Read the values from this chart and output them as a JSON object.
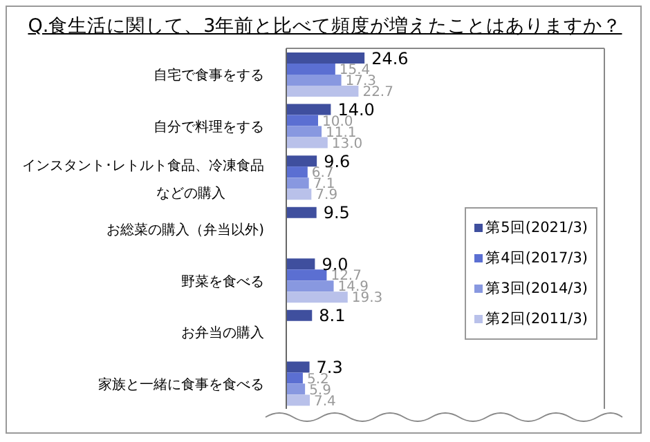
{
  "chart_data": {
    "type": "bar",
    "orientation": "horizontal",
    "title": "Q.食生活に関して、3年前と比べて頻度が増えたことはありますか？",
    "categories": [
      "自宅で食事をする",
      "自分で料理をする",
      "インスタント･レトルト食品、冷凍食品などの購入",
      "お総菜の購入（弁当以外)",
      "野菜を食べる",
      "お弁当の購入",
      "家族と一緒に食事を食べる"
    ],
    "series": [
      {
        "name": "第5回(2021/3)",
        "color": "#3f4f9e",
        "values": [
          24.6,
          14.0,
          9.6,
          9.5,
          9.0,
          8.1,
          7.3
        ],
        "value_labels": [
          "24.6",
          "14.0",
          "9.6",
          "9.5",
          "9.0",
          "8.1",
          "7.3"
        ]
      },
      {
        "name": "第4回(2017/3)",
        "color": "#5b6fd2",
        "values": [
          15.4,
          10.0,
          6.7,
          null,
          12.7,
          null,
          5.2
        ],
        "value_labels": [
          "15.4",
          "10.0",
          "6.7",
          null,
          "12.7",
          null,
          "5.2"
        ]
      },
      {
        "name": "第3回(2014/3)",
        "color": "#8898e0",
        "values": [
          17.3,
          11.1,
          7.1,
          null,
          14.9,
          null,
          5.9
        ],
        "value_labels": [
          "17.3",
          "11.1",
          "7.1",
          null,
          "14.9",
          null,
          "5.9"
        ]
      },
      {
        "name": "第2回(2011/3)",
        "color": "#b9c1ea",
        "values": [
          22.7,
          13.0,
          7.9,
          null,
          19.3,
          null,
          7.4
        ],
        "value_labels": [
          "22.7",
          "13.0",
          "7.9",
          null,
          "19.3",
          null,
          "7.4"
        ]
      }
    ],
    "xlim": [
      0,
      100
    ],
    "tick_labels": "y",
    "legend": "right"
  }
}
